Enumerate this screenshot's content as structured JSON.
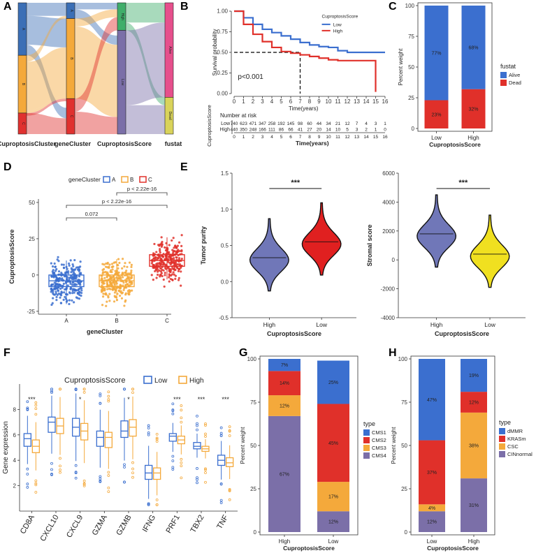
{
  "figure": {
    "panel_labels": [
      "A",
      "B",
      "C",
      "D",
      "E",
      "F",
      "G",
      "H"
    ]
  },
  "chart_data": [
    {
      "panel": "A",
      "type": "sankey",
      "axes": [
        "CuproptosisCluster",
        "geneCluster",
        "CuproptosisScore",
        "fustat"
      ],
      "nodes": {
        "CuproptosisCluster": [
          "A",
          "B",
          "C"
        ],
        "geneCluster": [
          "A",
          "B",
          "C"
        ],
        "CuproptosisScore": [
          "High",
          "Low"
        ],
        "fustat": [
          "Alive",
          "Dead"
        ]
      },
      "colors": {
        "A": "#3b6fb6",
        "B": "#f4a93b",
        "C": "#e0312f",
        "High": "#3fae6a",
        "Low": "#7b6fa8",
        "Alive": "#e64f8c",
        "Dead": "#d9d35a"
      }
    },
    {
      "panel": "B",
      "type": "line",
      "title": "CuproptosisScore",
      "xlabel": "Time(years)",
      "ylabel": "Survival probability",
      "xlim": [
        0,
        16
      ],
      "ylim": [
        0,
        1
      ],
      "x_ticks": [
        "0",
        "1",
        "2",
        "3",
        "4",
        "5",
        "6",
        "7",
        "8",
        "9",
        "10",
        "11",
        "12",
        "13",
        "14",
        "15",
        "16"
      ],
      "y_ticks": [
        "0.00",
        "0.25",
        "0.50",
        "0.75",
        "1.00"
      ],
      "pvalue": "p<0.001",
      "series": [
        {
          "name": "Low",
          "color": "#3b6fcf",
          "x": [
            0,
            1,
            2,
            3,
            4,
            5,
            6,
            7,
            8,
            9,
            10,
            11,
            12,
            15,
            16
          ],
          "y": [
            1.0,
            0.92,
            0.84,
            0.78,
            0.74,
            0.7,
            0.66,
            0.62,
            0.59,
            0.57,
            0.56,
            0.52,
            0.5,
            0.5,
            0.5
          ]
        },
        {
          "name": "High",
          "color": "#e0302a",
          "x": [
            0,
            1,
            2,
            3,
            4,
            5,
            6,
            7,
            8,
            9,
            10,
            11,
            12,
            13,
            14,
            15
          ],
          "y": [
            1.0,
            0.84,
            0.72,
            0.63,
            0.56,
            0.51,
            0.49,
            0.47,
            0.45,
            0.43,
            0.41,
            0.4,
            0.4,
            0.4,
            0.4,
            0.02
          ]
        }
      ],
      "risk_table": {
        "title": "Number at risk",
        "ylabel": "CuproptosisScore",
        "xlabel": "Time(years)",
        "rows": [
          {
            "name": "Low",
            "color": "#3b6fcf",
            "values": [
              "740",
              "623",
              "471",
              "347",
              "258",
              "192",
              "145",
              "98",
              "60",
              "44",
              "34",
              "21",
              "12",
              "7",
              "4",
              "3",
              "1"
            ]
          },
          {
            "name": "High",
            "color": "#e0302a",
            "values": [
              "440",
              "350",
              "248",
              "166",
              "111",
              "86",
              "66",
              "41",
              "27",
              "20",
              "14",
              "10",
              "5",
              "3",
              "2",
              "1",
              "0"
            ]
          }
        ]
      }
    },
    {
      "panel": "C",
      "type": "bar",
      "stacked": true,
      "categories": [
        "Low",
        "High"
      ],
      "xlabel": "CuproptosisScore",
      "ylabel": "Percent weight",
      "legend_title": "fustat",
      "y_ticks": [
        "0",
        "25",
        "50",
        "75",
        "100"
      ],
      "series": [
        {
          "name": "Alive",
          "color": "#3b6fcf",
          "values": [
            77,
            68
          ],
          "labels": [
            "77%",
            "68%"
          ]
        },
        {
          "name": "Dead",
          "color": "#e0302a",
          "values": [
            23,
            32
          ],
          "labels": [
            "23%",
            "32%"
          ]
        }
      ]
    },
    {
      "panel": "D",
      "type": "box",
      "legend_title": "geneCluster",
      "categories": [
        "A",
        "B",
        "C"
      ],
      "colors": [
        "#3b6fcf",
        "#f4a93b",
        "#e0302a"
      ],
      "xlabel": "geneCluster",
      "ylabel": "CuproptosisScore",
      "ylim": [
        -27,
        62
      ],
      "y_ticks": [
        "-25",
        "0",
        "25",
        "50"
      ],
      "boxes": [
        {
          "q1": -8,
          "median": -4,
          "q3": 0,
          "low": -20,
          "high": 10
        },
        {
          "q1": -8,
          "median": -4,
          "q3": 0,
          "low": -18,
          "high": 11
        },
        {
          "q1": 6,
          "median": 10,
          "q3": 14,
          "low": -3,
          "high": 26
        }
      ],
      "brackets": [
        {
          "label": "0.072",
          "from": "A",
          "to": "B"
        },
        {
          "label": "p < 2.22e-16",
          "from": "A",
          "to": "C"
        },
        {
          "label": "p < 2.22e-16",
          "from": "B",
          "to": "C"
        }
      ]
    },
    {
      "panel": "E1",
      "type": "violin",
      "categories": [
        "High",
        "Low"
      ],
      "colors": [
        "#7077b8",
        "#e02020"
      ],
      "xlabel": "CuproptosisScore",
      "ylabel": "Tumor purity",
      "ylim": [
        -0.5,
        1.5
      ],
      "y_ticks": [
        "-0.5",
        "0.0",
        "0.5",
        "1.0",
        "1.5"
      ],
      "medians": [
        0.33,
        0.55
      ],
      "significance": "***"
    },
    {
      "panel": "E2",
      "type": "violin",
      "categories": [
        "High",
        "Low"
      ],
      "colors": [
        "#7077b8",
        "#f0e020"
      ],
      "xlabel": "CuproptosisScore",
      "ylabel": "Stromal score",
      "ylim": [
        -4000,
        6000
      ],
      "y_ticks": [
        "-4000",
        "-2000",
        "0",
        "2000",
        "4000",
        "6000"
      ],
      "medians": [
        1800,
        400
      ],
      "significance": "***"
    },
    {
      "panel": "F",
      "type": "box",
      "legend_title": "CuproptosisScore",
      "legend": [
        {
          "name": "Low",
          "color": "#3b6fcf"
        },
        {
          "name": "High",
          "color": "#f4a93b"
        }
      ],
      "ylabel": "Gene expression",
      "ylim": [
        0,
        10
      ],
      "y_ticks": [
        "2",
        "4",
        "6",
        "8"
      ],
      "categories": [
        "CD8A",
        "CXCL10",
        "CXCL9",
        "GZMA",
        "GZMB",
        "IFNG",
        "PRF1",
        "TBX2",
        "TNF"
      ],
      "significance": [
        "***",
        "",
        "*",
        "",
        "*",
        "",
        "***",
        "***",
        "***"
      ],
      "low": [
        {
          "q1": 5.1,
          "median": 5.7,
          "q3": 6.1
        },
        {
          "q1": 6.2,
          "median": 7.0,
          "q3": 7.4
        },
        {
          "q1": 5.9,
          "median": 6.6,
          "q3": 7.3
        },
        {
          "q1": 5.1,
          "median": 5.8,
          "q3": 6.3
        },
        {
          "q1": 5.8,
          "median": 6.3,
          "q3": 7.1
        },
        {
          "q1": 2.5,
          "median": 3.0,
          "q3": 3.6
        },
        {
          "q1": 5.5,
          "median": 5.9,
          "q3": 6.1
        },
        {
          "q1": 4.9,
          "median": 5.1,
          "q3": 5.4
        },
        {
          "q1": 3.6,
          "median": 4.0,
          "q3": 4.4
        }
      ],
      "high": [
        {
          "q1": 4.6,
          "median": 5.1,
          "q3": 5.6
        },
        {
          "q1": 6.1,
          "median": 6.7,
          "q3": 7.3
        },
        {
          "q1": 5.6,
          "median": 6.3,
          "q3": 6.9
        },
        {
          "q1": 5.0,
          "median": 5.8,
          "q3": 6.2
        },
        {
          "q1": 5.9,
          "median": 6.6,
          "q3": 7.2
        },
        {
          "q1": 2.5,
          "median": 3.0,
          "q3": 3.4
        },
        {
          "q1": 5.3,
          "median": 5.6,
          "q3": 5.9
        },
        {
          "q1": 4.7,
          "median": 4.9,
          "q3": 5.1
        },
        {
          "q1": 3.5,
          "median": 3.8,
          "q3": 4.2
        }
      ]
    },
    {
      "panel": "G",
      "type": "bar",
      "stacked": true,
      "categories": [
        "High",
        "Low"
      ],
      "xlabel": "CuproptosisScore",
      "ylabel": "Percent weight",
      "legend_title": "type",
      "y_ticks": [
        "0",
        "25",
        "50",
        "75",
        "100"
      ],
      "series": [
        {
          "name": "CMS1",
          "color": "#3b6fcf",
          "values": [
            7,
            25
          ],
          "labels": [
            "7%",
            "25%"
          ]
        },
        {
          "name": "CMS2",
          "color": "#e0302a",
          "values": [
            14,
            45
          ],
          "labels": [
            "14%",
            "45%"
          ]
        },
        {
          "name": "CMS3",
          "color": "#f4a93b",
          "values": [
            12,
            17
          ],
          "labels": [
            "12%",
            "17%"
          ]
        },
        {
          "name": "CMS4",
          "color": "#7b6fa8",
          "values": [
            67,
            12
          ],
          "labels": [
            "67%",
            "12%"
          ]
        }
      ]
    },
    {
      "panel": "H",
      "type": "bar",
      "stacked": true,
      "categories": [
        "Low",
        "High"
      ],
      "xlabel": "CuproptosisScore",
      "ylabel": "Percent weight",
      "legend_title": "type",
      "y_ticks": [
        "0",
        "25",
        "50",
        "75",
        "100"
      ],
      "series": [
        {
          "name": "dMMR",
          "color": "#3b6fcf",
          "values": [
            47,
            19
          ],
          "labels": [
            "47%",
            "19%"
          ]
        },
        {
          "name": "KRASm",
          "color": "#e0302a",
          "values": [
            37,
            12
          ],
          "labels": [
            "37%",
            "12%"
          ]
        },
        {
          "name": "CSC",
          "color": "#f4a93b",
          "values": [
            4,
            38
          ],
          "labels": [
            "4%",
            "38%"
          ]
        },
        {
          "name": "CINnormal",
          "color": "#7b6fa8",
          "values": [
            12,
            31
          ],
          "labels": [
            "12%",
            "31%"
          ]
        }
      ]
    }
  ]
}
